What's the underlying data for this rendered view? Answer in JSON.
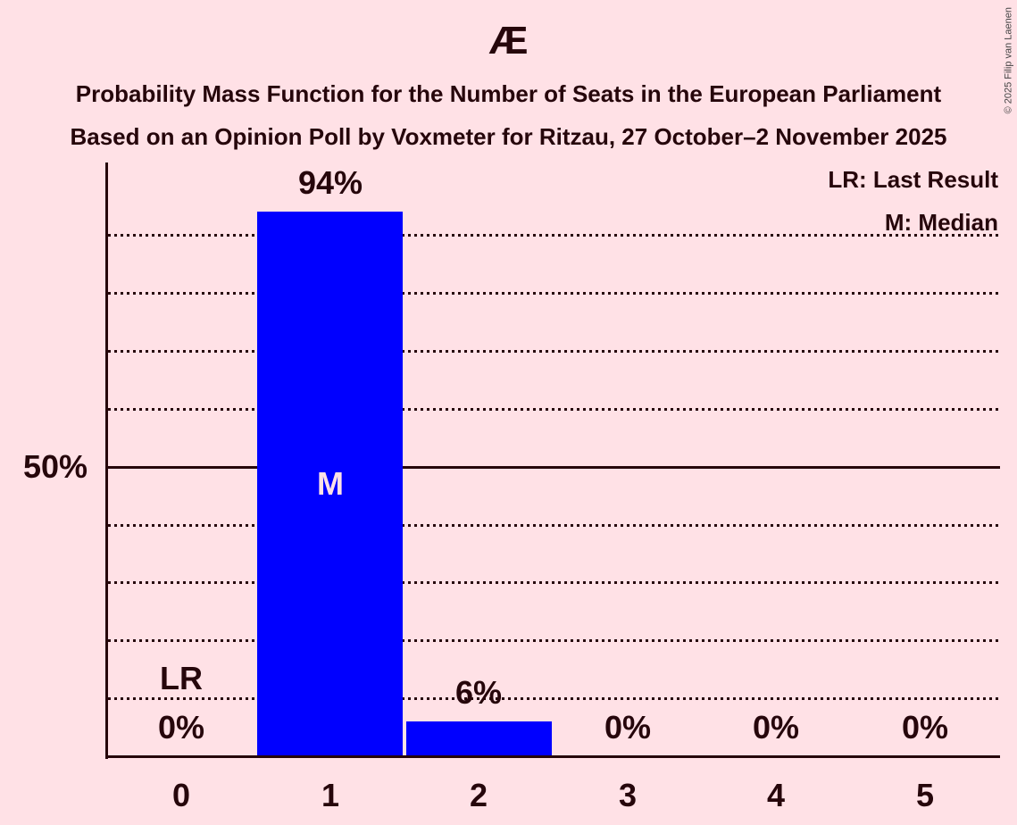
{
  "copyright": "© 2025 Filip van Laenen",
  "header": {
    "title": "Æ",
    "subtitle1": "Probability Mass Function for the Number of Seats in the European Parliament",
    "subtitle2": "Based on an Opinion Poll by Voxmeter for Ritzau, 27 October–2 November 2025"
  },
  "legend": {
    "lr": "LR: Last Result",
    "m": "M: Median"
  },
  "colors": {
    "background": "#ffe1e6",
    "bar": "#0000ff",
    "text": "#26060b"
  },
  "chart_data": {
    "type": "bar",
    "title": "Æ",
    "subtitle": [
      "Probability Mass Function for the Number of Seats in the European Parliament",
      "Based on an Opinion Poll by Voxmeter for Ritzau, 27 October–2 November 2025"
    ],
    "categories": [
      "0",
      "1",
      "2",
      "3",
      "4",
      "5"
    ],
    "values": [
      0,
      94,
      6,
      0,
      0,
      0
    ],
    "bar_labels": [
      "0%",
      "94%",
      "6%",
      "0%",
      "0%",
      "0%"
    ],
    "xlabel": "",
    "ylabel": "",
    "ylim": [
      0,
      100
    ],
    "yticks_dotted": [
      10,
      20,
      30,
      40,
      60,
      70,
      80,
      90
    ],
    "ytick_solid": {
      "value": 50,
      "label": "50%"
    },
    "grid": "horizontal-dotted",
    "legend": [
      {
        "abbr": "LR",
        "meaning": "Last Result"
      },
      {
        "abbr": "M",
        "meaning": "Median"
      }
    ],
    "legend_position": "top-right",
    "annotations": {
      "last_result": {
        "label": "LR",
        "category": "0"
      },
      "median": {
        "label": "M",
        "category": "1"
      }
    },
    "bar_color": "#0000ff"
  }
}
